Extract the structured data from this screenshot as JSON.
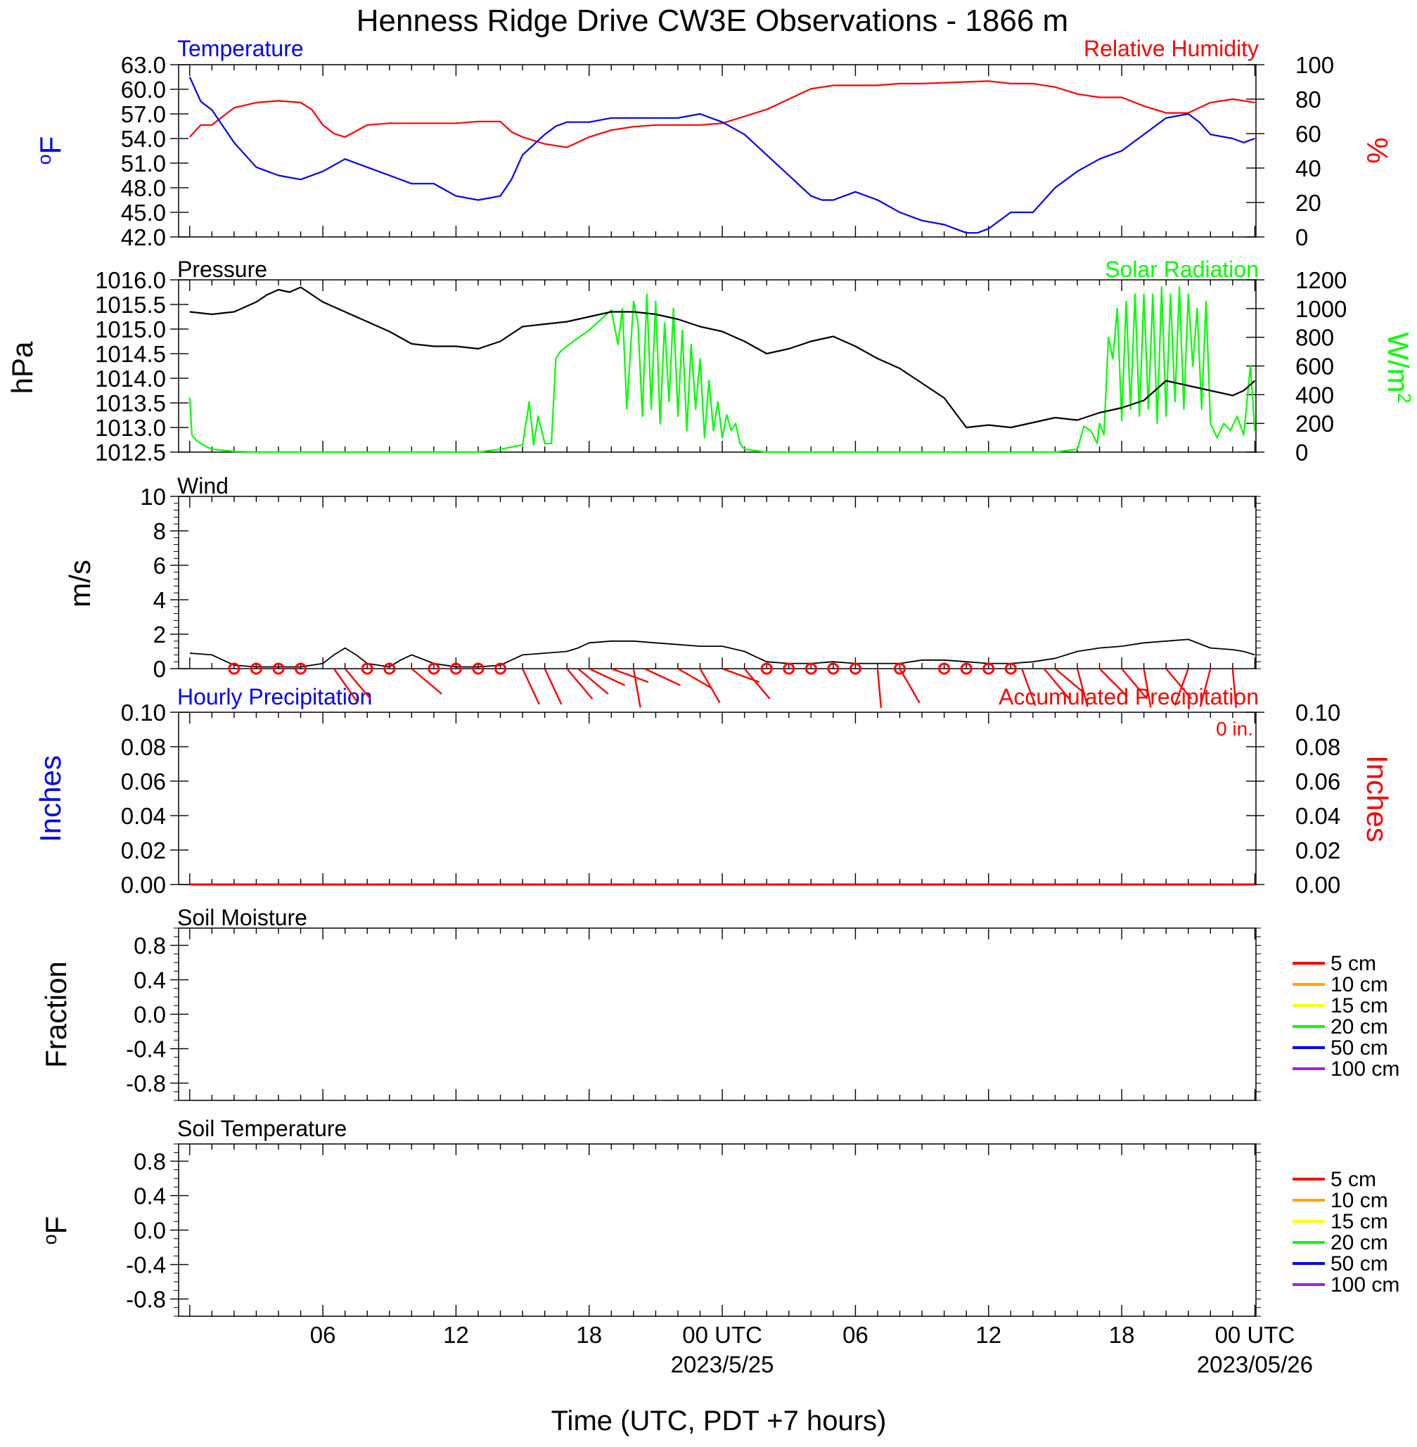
{
  "title": "Henness Ridge Drive CW3E Observations - 1866 m",
  "xlabel": "Time (UTC, PDT +7 hours)",
  "colors": {
    "temp": "#0000ff",
    "rh": "#ff0000",
    "pressure": "#000000",
    "solar": "#00ff00",
    "wind": "#000000",
    "barb": "#ff0000",
    "hourly": "#0000ff",
    "accum": "#ff0000"
  },
  "time_ticks": [
    {
      "hour": 6,
      "label": "06",
      "date": ""
    },
    {
      "hour": 12,
      "label": "12",
      "date": ""
    },
    {
      "hour": 18,
      "label": "18",
      "date": ""
    },
    {
      "hour": 24,
      "label": "00 UTC",
      "date": "2023/5/25"
    },
    {
      "hour": 30,
      "label": "06",
      "date": ""
    },
    {
      "hour": 36,
      "label": "12",
      "date": ""
    },
    {
      "hour": 42,
      "label": "18",
      "date": ""
    },
    {
      "hour": 48,
      "label": "00 UTC",
      "date": "2023/05/26"
    }
  ],
  "legend_depths": [
    {
      "label": "5 cm",
      "color": "#ff0000"
    },
    {
      "label": "10 cm",
      "color": "#ffa500"
    },
    {
      "label": "15 cm",
      "color": "#ffff00"
    },
    {
      "label": "20 cm",
      "color": "#00ff00"
    },
    {
      "label": "50 cm",
      "color": "#0000ff"
    },
    {
      "label": "100 cm",
      "color": "#a020f0"
    }
  ],
  "chart_data": [
    {
      "type": "line",
      "panel": "temperature-humidity",
      "title_left": "Temperature",
      "title_right": "Relative Humidity",
      "ylabel_left": "oF",
      "ylabel_right": "%",
      "ylim_left": [
        42,
        63
      ],
      "ylim_right": [
        0,
        100
      ],
      "yticks_left": [
        "63.0",
        "60.0",
        "57.0",
        "54.0",
        "51.0",
        "48.0",
        "45.0",
        "42.0"
      ],
      "yticks_right": [
        "100",
        "80",
        "60",
        "40",
        "20",
        "0"
      ],
      "series": [
        {
          "name": "Temperature",
          "axis": "left",
          "x": [
            0,
            0.5,
            1,
            2,
            3,
            4,
            5,
            6,
            7,
            8,
            9,
            10,
            11,
            12,
            13,
            14,
            14.5,
            15,
            16,
            16.5,
            17,
            18,
            19,
            20,
            21,
            22,
            23,
            24,
            25,
            26,
            27,
            28,
            28.5,
            29,
            30,
            31,
            32,
            33,
            34,
            35,
            35.5,
            36,
            37,
            38,
            39,
            40,
            41,
            42,
            43,
            44,
            45,
            45.5,
            46,
            47,
            47.5,
            48
          ],
          "y": [
            61.5,
            58.5,
            57.5,
            53.5,
            50.5,
            49.5,
            49,
            50,
            51.5,
            50.5,
            49.5,
            48.5,
            48.5,
            47,
            46.5,
            47,
            49,
            52,
            54.5,
            55.5,
            56,
            56,
            56.5,
            56.5,
            56.5,
            56.5,
            57,
            56,
            54.5,
            52,
            49.5,
            47,
            46.5,
            46.5,
            47.5,
            46.5,
            45,
            44,
            43.5,
            42.5,
            42.5,
            43,
            45,
            45,
            48,
            50,
            51.5,
            52.5,
            54.5,
            56.5,
            57,
            56,
            54.5,
            54,
            53.5,
            54
          ]
        },
        {
          "name": "Relative Humidity",
          "axis": "right",
          "x": [
            0,
            0.5,
            1,
            2,
            3,
            4,
            5,
            5.5,
            6,
            6.5,
            7,
            8,
            9,
            10,
            11,
            12,
            13,
            14,
            14.5,
            15,
            16,
            17,
            18,
            19,
            20,
            21,
            22,
            23,
            24,
            25,
            26,
            27,
            28,
            29,
            30,
            31,
            32,
            33,
            34,
            35,
            36,
            37,
            38,
            39,
            40,
            41,
            42,
            43,
            44,
            45,
            46,
            47,
            47.5,
            48
          ],
          "y": [
            58,
            65,
            65,
            75,
            78,
            79,
            78,
            74,
            65,
            60,
            58,
            65,
            66,
            66,
            66,
            66,
            67,
            67,
            61,
            58,
            54,
            52,
            58,
            62,
            64,
            65,
            65,
            65,
            66,
            70,
            74,
            80,
            86,
            88,
            88,
            88,
            89,
            89,
            89.5,
            90,
            90.5,
            89,
            89,
            87,
            83,
            81,
            81,
            76,
            72,
            72,
            78,
            80,
            79,
            78
          ]
        }
      ]
    },
    {
      "type": "line",
      "panel": "pressure-solar",
      "title_left": "Pressure",
      "title_right": "Solar Radiation",
      "ylabel_left": "hPa",
      "ylabel_right": "W/m2",
      "ylim_left": [
        1012.5,
        1016.0
      ],
      "ylim_right": [
        0,
        1200
      ],
      "yticks_left": [
        "1016.0",
        "1015.5",
        "1015.0",
        "1014.5",
        "1014.0",
        "1013.5",
        "1013.0",
        "1012.5"
      ],
      "yticks_right": [
        "1200",
        "1000",
        "800",
        "600",
        "400",
        "200",
        "0"
      ],
      "series": [
        {
          "name": "Pressure",
          "axis": "left",
          "x": [
            0,
            1,
            2,
            3,
            3.5,
            4,
            4.5,
            5,
            6,
            7,
            8,
            9,
            10,
            11,
            12,
            13,
            14,
            15,
            16,
            17,
            18,
            19,
            20,
            21,
            22,
            23,
            24,
            25,
            26,
            27,
            28,
            29,
            30,
            31,
            32,
            33,
            34,
            35,
            36,
            37,
            38,
            39,
            40,
            41,
            42,
            43,
            44,
            45,
            46,
            47,
            47.5,
            48
          ],
          "y": [
            1015.35,
            1015.3,
            1015.35,
            1015.55,
            1015.7,
            1015.8,
            1015.75,
            1015.85,
            1015.55,
            1015.35,
            1015.15,
            1014.95,
            1014.7,
            1014.65,
            1014.65,
            1014.6,
            1014.75,
            1015.05,
            1015.1,
            1015.15,
            1015.25,
            1015.35,
            1015.35,
            1015.3,
            1015.2,
            1015.05,
            1014.95,
            1014.75,
            1014.5,
            1014.6,
            1014.75,
            1014.85,
            1014.65,
            1014.4,
            1014.2,
            1013.9,
            1013.6,
            1013.0,
            1013.05,
            1013.0,
            1013.1,
            1013.2,
            1013.15,
            1013.3,
            1013.4,
            1013.55,
            1013.95,
            1013.85,
            1013.75,
            1013.65,
            1013.75,
            1013.95
          ]
        },
        {
          "name": "Solar Radiation",
          "axis": "right",
          "x": [
            0,
            0.1,
            0.3,
            0.6,
            1,
            2,
            3,
            4,
            5,
            6,
            7,
            8,
            9,
            10,
            11,
            12,
            13,
            14,
            15,
            15.3,
            15.5,
            15.7,
            16,
            16.3,
            16.5,
            16.7,
            17,
            18,
            19,
            19.3,
            19.5,
            19.7,
            20,
            20.2,
            20.4,
            20.6,
            20.8,
            21,
            21.2,
            21.4,
            21.6,
            21.8,
            22,
            22.2,
            22.4,
            22.6,
            22.8,
            23,
            23.2,
            23.4,
            23.6,
            23.8,
            24,
            24.2,
            24.4,
            24.6,
            24.8,
            25,
            26,
            27,
            28,
            29,
            30,
            31,
            32,
            33,
            34,
            35,
            36,
            37,
            38,
            39,
            40,
            40.3,
            40.6,
            40.9,
            41,
            41.2,
            41.4,
            41.6,
            41.8,
            42,
            42.2,
            42.4,
            42.6,
            42.8,
            43,
            43.2,
            43.4,
            43.6,
            43.8,
            44,
            44.2,
            44.4,
            44.6,
            44.8,
            45,
            45.2,
            45.4,
            45.6,
            45.8,
            46,
            46.3,
            46.6,
            46.9,
            47.2,
            47.5,
            47.8,
            48
          ],
          "y": [
            380,
            120,
            80,
            50,
            20,
            5,
            0,
            0,
            0,
            0,
            0,
            0,
            0,
            0,
            0,
            0,
            0,
            20,
            50,
            350,
            50,
            250,
            60,
            60,
            650,
            700,
            740,
            850,
            990,
            750,
            1000,
            300,
            1050,
            900,
            250,
            1100,
            300,
            1050,
            200,
            900,
            350,
            1000,
            250,
            850,
            150,
            750,
            300,
            650,
            100,
            500,
            150,
            350,
            100,
            260,
            150,
            200,
            60,
            20,
            0,
            0,
            0,
            0,
            0,
            0,
            0,
            0,
            0,
            0,
            0,
            0,
            0,
            0,
            20,
            180,
            150,
            60,
            200,
            120,
            800,
            650,
            1000,
            220,
            1050,
            300,
            1100,
            250,
            1100,
            300,
            1100,
            200,
            1150,
            250,
            1100,
            350,
            1150,
            300,
            1100,
            600,
            1000,
            300,
            1050,
            200,
            100,
            200,
            150,
            250,
            120,
            600,
            150
          ]
        }
      ]
    },
    {
      "type": "line",
      "panel": "wind",
      "title_left": "Wind",
      "ylabel_left": "m/s",
      "ylim": [
        0,
        10
      ],
      "yticks_left": [
        "10",
        "8",
        "6",
        "4",
        "2",
        "0"
      ],
      "series": [
        {
          "name": "Wind speed",
          "x": [
            0,
            1,
            2,
            3,
            4,
            5,
            6,
            6.5,
            7,
            7.5,
            8,
            9,
            9.5,
            10,
            11,
            12,
            13,
            14,
            15,
            16,
            17,
            17.5,
            18,
            19,
            20,
            21,
            22,
            23,
            24,
            25,
            25.5,
            26,
            27,
            28,
            29,
            30,
            31,
            32,
            33,
            34,
            35,
            36,
            37,
            38,
            39,
            40,
            41,
            42,
            43,
            44,
            45,
            46,
            47,
            47.5,
            48
          ],
          "y": [
            0.9,
            0.8,
            0.2,
            0.1,
            0.1,
            0.1,
            0.3,
            0.8,
            1.2,
            0.8,
            0.3,
            0.1,
            0.5,
            0.8,
            0.3,
            0.1,
            0.1,
            0.2,
            0.8,
            0.9,
            1.0,
            1.2,
            1.5,
            1.6,
            1.6,
            1.5,
            1.4,
            1.3,
            1.3,
            1.0,
            0.7,
            0.4,
            0.3,
            0.3,
            0.4,
            0.3,
            0.3,
            0.3,
            0.5,
            0.5,
            0.4,
            0.3,
            0.3,
            0.4,
            0.6,
            1.0,
            1.2,
            1.3,
            1.5,
            1.6,
            1.7,
            1.2,
            1.1,
            1.0,
            0.8
          ]
        }
      ],
      "calm_hours": [
        2,
        3,
        4,
        5,
        8,
        9,
        11,
        12,
        13,
        14,
        26,
        27,
        28,
        29,
        30,
        32,
        34,
        35,
        36,
        37
      ],
      "barbs": [
        {
          "hour": 6.5,
          "dir": 145,
          "speed": 1.0
        },
        {
          "hour": 7,
          "dir": 140,
          "speed": 1.3
        },
        {
          "hour": 10,
          "dir": 130,
          "speed": 0.8
        },
        {
          "hour": 15,
          "dir": 155,
          "speed": 0.9
        },
        {
          "hour": 16,
          "dir": 155,
          "speed": 1.0
        },
        {
          "hour": 17,
          "dir": 140,
          "speed": 1.3
        },
        {
          "hour": 17.5,
          "dir": 130,
          "speed": 1.5
        },
        {
          "hour": 18,
          "dir": 115,
          "speed": 1.6
        },
        {
          "hour": 19,
          "dir": 110,
          "speed": 1.7
        },
        {
          "hour": 20,
          "dir": 170,
          "speed": 1.8
        },
        {
          "hour": 20.5,
          "dir": 115,
          "speed": 1.6
        },
        {
          "hour": 22,
          "dir": 120,
          "speed": 1.5
        },
        {
          "hour": 23,
          "dir": 150,
          "speed": 1.5
        },
        {
          "hour": 24,
          "dir": 110,
          "speed": 1.4
        },
        {
          "hour": 25,
          "dir": 140,
          "speed": 1.2
        },
        {
          "hour": 31,
          "dir": 175,
          "speed": 0.8
        },
        {
          "hour": 32,
          "dir": 150,
          "speed": 0.8
        },
        {
          "hour": 37.5,
          "dir": 160,
          "speed": 1.0
        },
        {
          "hour": 38.5,
          "dir": 140,
          "speed": 1.2
        },
        {
          "hour": 39,
          "dir": 130,
          "speed": 1.4
        },
        {
          "hour": 40,
          "dir": 165,
          "speed": 1.6
        },
        {
          "hour": 41,
          "dir": 135,
          "speed": 1.7
        },
        {
          "hour": 42,
          "dir": 140,
          "speed": 1.7
        },
        {
          "hour": 43,
          "dir": 170,
          "speed": 1.9
        },
        {
          "hour": 44,
          "dir": 140,
          "speed": 1.7
        },
        {
          "hour": 45,
          "dir": 200,
          "speed": 1.2
        },
        {
          "hour": 46,
          "dir": 195,
          "speed": 1.1
        },
        {
          "hour": 47,
          "dir": 175,
          "speed": 1.0
        }
      ]
    },
    {
      "type": "line",
      "panel": "precipitation",
      "title_left": "Hourly Precipitation",
      "title_right": "Accumulated Precipitation",
      "annotation": "0 in.",
      "ylabel_left": "Inches",
      "ylabel_right": "Inches",
      "ylim": [
        0,
        0.1
      ],
      "yticks_left": [
        "0.10",
        "0.08",
        "0.06",
        "0.04",
        "0.02",
        "0.00"
      ],
      "yticks_right": [
        "0.10",
        "0.08",
        "0.06",
        "0.04",
        "0.02",
        "0.00"
      ],
      "series": [
        {
          "name": "Hourly Precipitation",
          "x": [
            0,
            48
          ],
          "y": [
            0,
            0
          ]
        },
        {
          "name": "Accumulated Precipitation",
          "x": [
            0,
            48
          ],
          "y": [
            0,
            0
          ]
        }
      ]
    },
    {
      "type": "line",
      "panel": "soil-moisture",
      "title_left": "Soil Moisture",
      "ylabel_left": "Fraction",
      "ylim": [
        -1.0,
        1.0
      ],
      "yticks_left": [
        "0.8",
        "0.4",
        "0.0",
        "-0.4",
        "-0.8"
      ],
      "series": []
    },
    {
      "type": "line",
      "panel": "soil-temperature",
      "title_left": "Soil Temperature",
      "ylabel_left": "oF",
      "ylim": [
        -1.0,
        1.0
      ],
      "yticks_left": [
        "0.8",
        "0.4",
        "0.0",
        "-0.4",
        "-0.8"
      ],
      "series": []
    }
  ]
}
